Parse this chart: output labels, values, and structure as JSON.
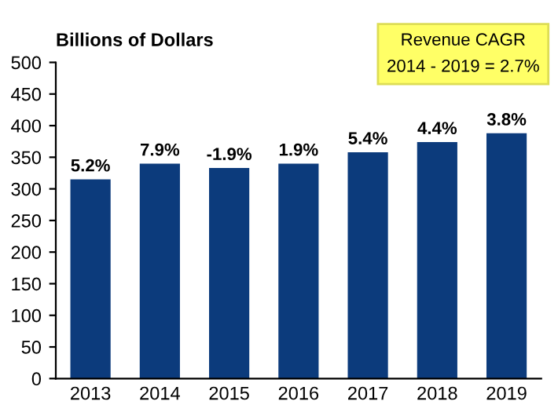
{
  "chart_data": {
    "type": "bar",
    "ylabel": "Billions of Dollars",
    "categories": [
      "2013",
      "2014",
      "2015",
      "2016",
      "2017",
      "2018",
      "2019"
    ],
    "values": [
      315,
      340,
      333,
      340,
      358,
      374,
      388
    ],
    "color": "#0c3b7c",
    "ylim": [
      0,
      500
    ],
    "yticks": [
      0,
      50,
      100,
      150,
      200,
      250,
      300,
      350,
      400,
      450,
      500
    ],
    "annotations": [
      "Revenue CAGR\n2014 - 2019 = 2.7%",
      {
        "text": "5.2%",
        "x": "2013",
        "y": 315
      },
      {
        "text": "7.9%",
        "x": "2014",
        "y": 340
      },
      {
        "text": "-1.9%",
        "x": "2015",
        "y": 333
      },
      {
        "text": "1.9%",
        "x": "2016",
        "y": 340
      },
      {
        "text": "5.4%",
        "x": "2017",
        "y": 358
      },
      {
        "text": "4.4%",
        "x": "2018",
        "y": 374
      },
      {
        "text": "3.8%",
        "x": "2019",
        "y": 388
      }
    ],
    "grid": false,
    "legend": false
  }
}
